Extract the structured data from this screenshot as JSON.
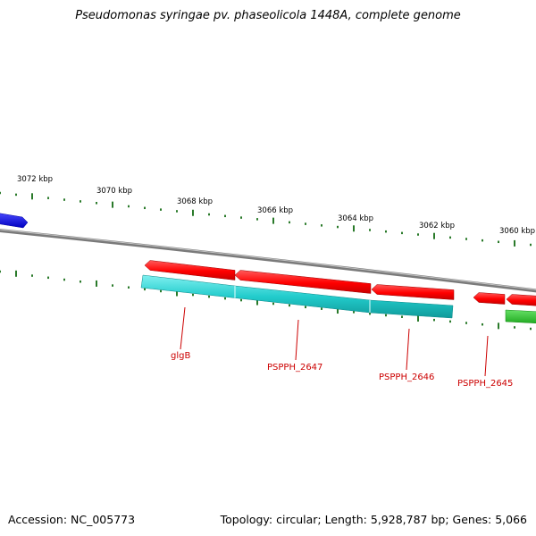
{
  "title": "Pseudomonas syringae pv. phaseolicola 1448A, complete genome",
  "footer": {
    "accession": "Accession: NC_005773",
    "stats": "Topology: circular; Length: 5,928,787 bp; Genes: 5,066"
  },
  "scale_labels": [
    "3072 kbp",
    "3070 kbp",
    "3068 kbp",
    "3066 kbp",
    "3064 kbp",
    "3062 kbp",
    "3060 kbp"
  ],
  "gene_labels": [
    "glgB",
    "PSPPH_2647",
    "PSPPH_2646",
    "PSPPH_2645"
  ],
  "colors": {
    "forward_gene": "#ff0000",
    "reverse_gene": "#1ec8c8",
    "other_gene_blue": "#1010e0",
    "other_gene_green": "#33cc33",
    "backbone": "#8c8c8c",
    "ticks": "#2a7a2a",
    "label_text": "#cc0000"
  }
}
